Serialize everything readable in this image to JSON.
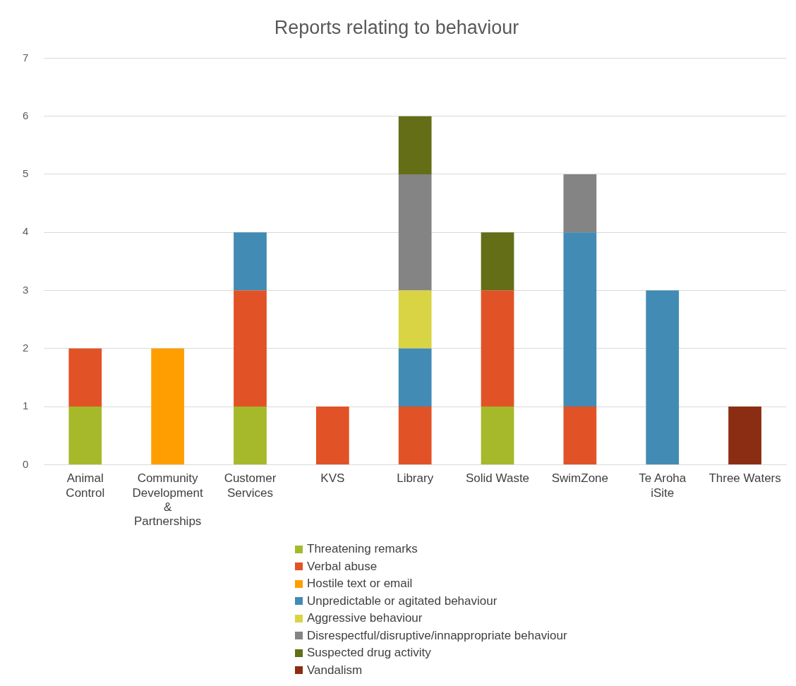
{
  "chart_data": {
    "type": "bar",
    "title": "Reports relating to behaviour",
    "stacked": true,
    "grid": "y",
    "legend": "bottom",
    "categories": [
      "Animal Control",
      "Community Development & Partnerships",
      "Customer Services",
      "KVS",
      "Library",
      "Solid Waste",
      "SwimZone",
      "Te Aroha iSite",
      "Three Waters"
    ],
    "ylim": [
      0,
      7
    ],
    "yticks": [
      0,
      1,
      2,
      3,
      4,
      5,
      6,
      7
    ],
    "series": [
      {
        "name": "Threatening remarks",
        "color": "#a5b92b",
        "values": [
          1,
          0,
          1,
          0,
          0,
          1,
          0,
          0,
          0
        ]
      },
      {
        "name": "Verbal abuse",
        "color": "#e15326",
        "values": [
          1,
          0,
          2,
          1,
          1,
          2,
          1,
          0,
          0
        ]
      },
      {
        "name": "Hostile text or email",
        "color": "#ff9e00",
        "values": [
          0,
          2,
          0,
          0,
          0,
          0,
          0,
          0,
          0
        ]
      },
      {
        "name": "Unpredictable or agitated behaviour",
        "color": "#428bb5",
        "values": [
          0,
          0,
          1,
          0,
          1,
          0,
          3,
          3,
          0
        ]
      },
      {
        "name": "Aggressive behaviour",
        "color": "#d8d444",
        "values": [
          0,
          0,
          0,
          0,
          1,
          0,
          0,
          0,
          0
        ]
      },
      {
        "name": "Disrespectful/disruptive/innappropriate behaviour",
        "color": "#848484",
        "values": [
          0,
          0,
          0,
          0,
          2,
          0,
          1,
          0,
          0
        ]
      },
      {
        "name": "Suspected drug activity",
        "color": "#636e17",
        "values": [
          0,
          0,
          0,
          0,
          1,
          1,
          0,
          0,
          0
        ]
      },
      {
        "name": "Vandalism",
        "color": "#8b2d13",
        "values": [
          0,
          0,
          0,
          0,
          0,
          0,
          0,
          0,
          1
        ]
      }
    ]
  }
}
